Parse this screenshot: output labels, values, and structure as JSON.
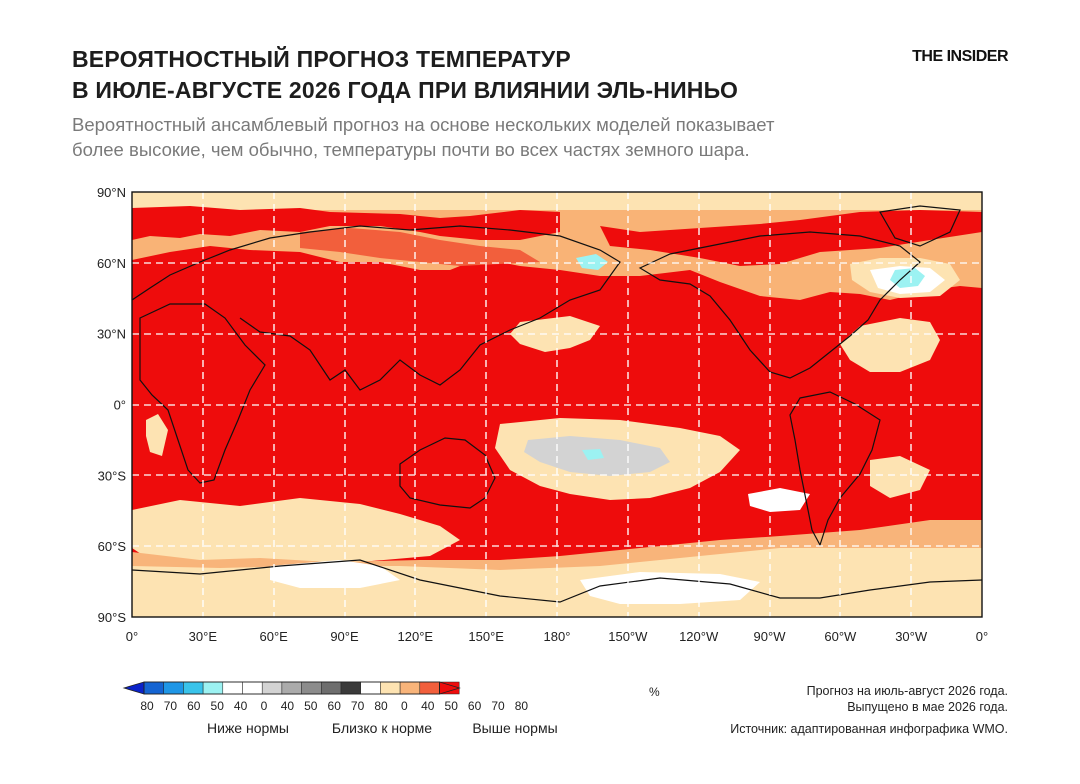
{
  "header": {
    "title_lines": [
      "ВЕРОЯТНОСТНЫЙ ПРОГНОЗ ТЕМПЕРАТУР",
      "В ИЮЛЕ-АВГУСТЕ 2026 ГОДА ПРИ ВЛИЯНИИ ЭЛЬ-НИНЬО"
    ],
    "brand": "THE INSIDER",
    "subtitle_lines": [
      "Вероятностный ансамблевый прогноз на основе нескольких моделей показывает",
      "более высокие, чем обычно, температуры почти во всех частях земного шара."
    ]
  },
  "map": {
    "lat_ticks": [
      "90°N",
      "60°N",
      "30°N",
      "0°",
      "30°S",
      "60°S",
      "90°S"
    ],
    "lon_ticks": [
      "0°",
      "30°E",
      "60°E",
      "90°E",
      "120°E",
      "150°E",
      "180°",
      "150°W",
      "120°W",
      "90°W",
      "60°W",
      "30°W",
      "0°"
    ],
    "colors": {
      "strong_above": "#ee0c0c",
      "above_70": "#f25f3c",
      "above_60": "#f8b47a",
      "above_50": "#fde3b2",
      "near_normal": "#d3d3d3",
      "below": "#9cf2f2",
      "blank": "#ffffff"
    }
  },
  "legend": {
    "unit": "%",
    "swatches": [
      "#0b22c9",
      "#1464d2",
      "#1e96e6",
      "#39c3ea",
      "#9cf2f2",
      "#ffffff",
      "#ffffff",
      "#d3d3d3",
      "#ababab",
      "#8c8c8c",
      "#6e6e6e",
      "#3a3a3a",
      "#ffffff",
      "#fde3b2",
      "#f8b47a",
      "#f25f3c",
      "#ee0c0c"
    ],
    "tick_labels": [
      "80",
      "70",
      "60",
      "50",
      "40",
      "0",
      "40",
      "50",
      "60",
      "70",
      "80",
      "0",
      "40",
      "50",
      "60",
      "70",
      "80"
    ],
    "groups": [
      "Ниже нормы",
      "Близко к норме",
      "Выше нормы"
    ]
  },
  "footnotes": {
    "line1": "Прогноз на июль-август 2026 года.",
    "line2": "Выпущено в мае 2026 года.",
    "source": "Источник: адаптированная инфографика WMO."
  }
}
